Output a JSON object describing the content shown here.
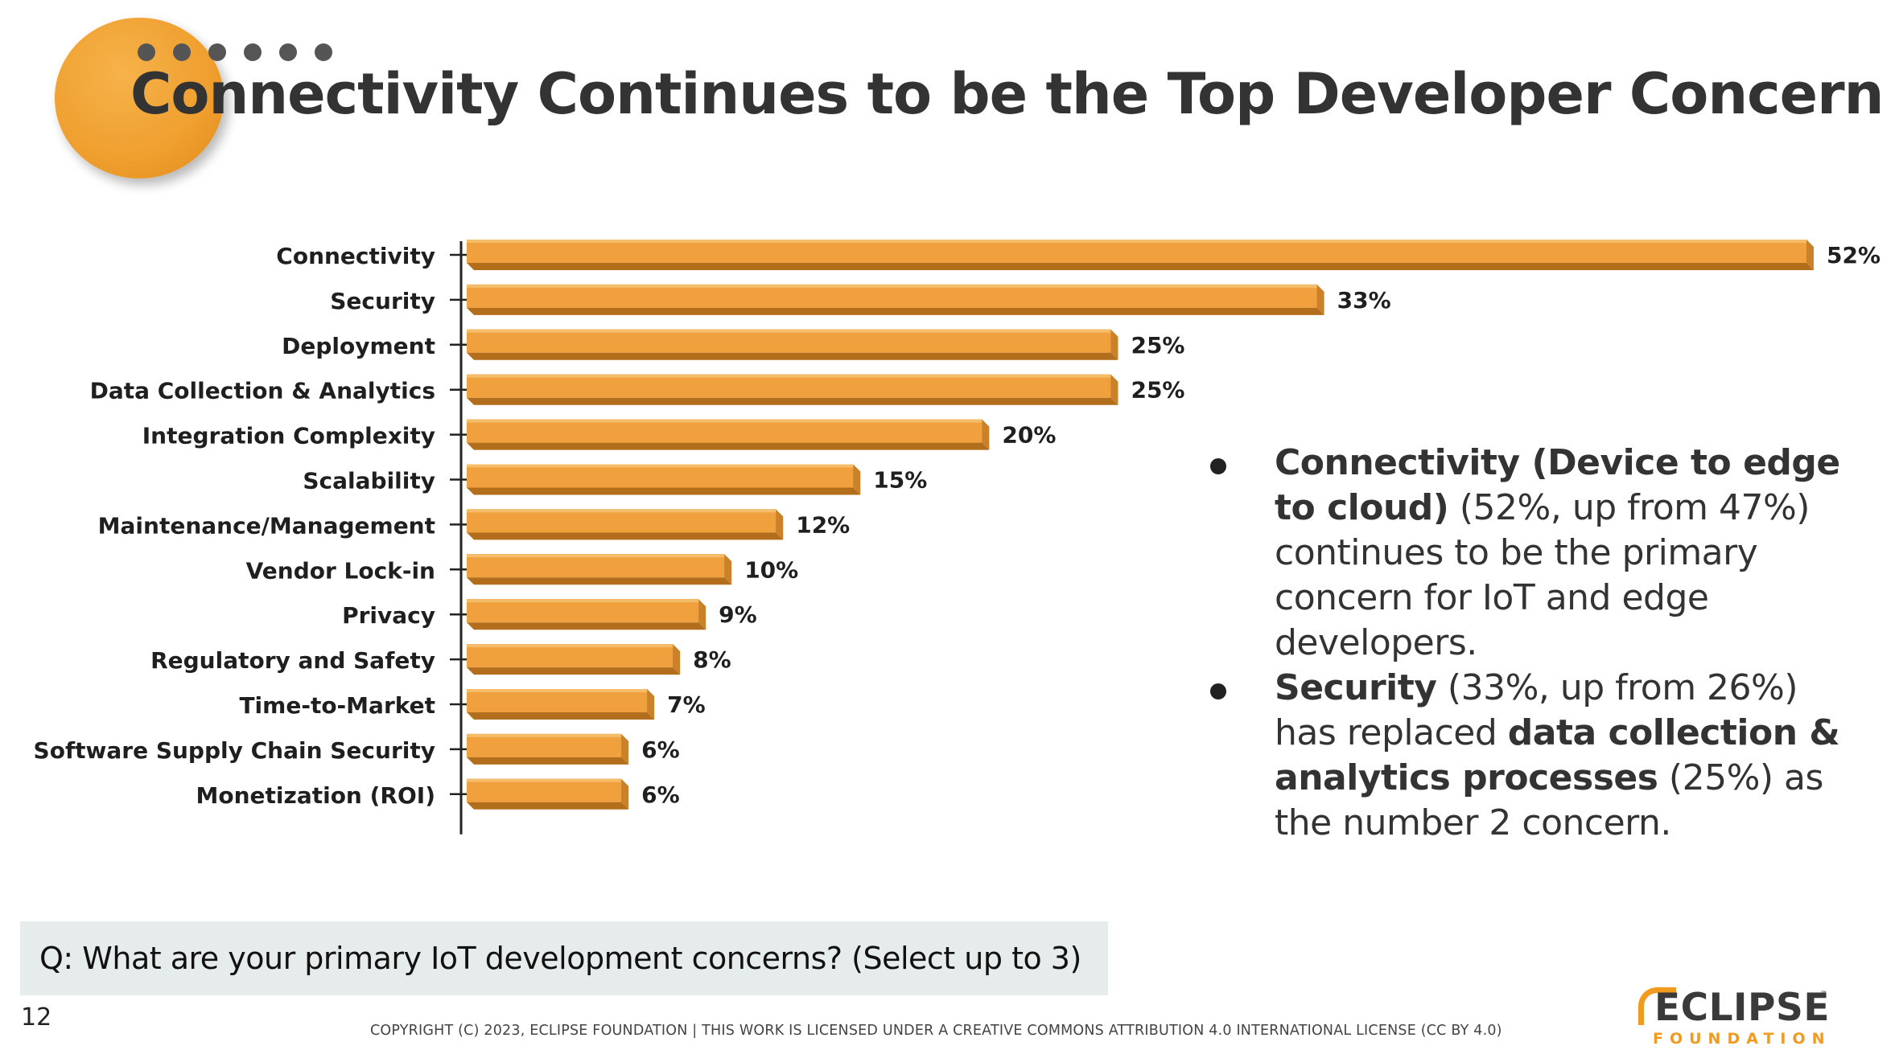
{
  "slide": {
    "title": "Connectivity Continues to be the Top Developer Concern",
    "page_number": "12",
    "copyright": "COPYRIGHT (C) 2023, ECLIPSE FOUNDATION | THIS WORK IS LICENSED UNDER A CREATIVE COMMONS ATTRIBUTION 4.0 INTERNATIONAL LICENSE (CC BY 4.0)",
    "question": "Q: What are your primary IoT development concerns? (Select up to 3)"
  },
  "logo": {
    "word": "ECLIPSE",
    "sub": "FOUNDATION",
    "tm": "™"
  },
  "bullets": [
    {
      "b1": "Connectivity (Device to edge to cloud)",
      "t1": " (52%, up from 47%) continues to be the primary concern for IoT and edge developers."
    },
    {
      "b1": "Security",
      "t1": " (33%, up from 26%) has replaced ",
      "b2": "data collection & analytics processes",
      "t2": " (25%) as the number 2 concern."
    }
  ],
  "colors": {
    "bar_front": "#f0a03c",
    "bar_top": "#f5bc6a",
    "bar_side": "#c9822a",
    "bar_bottom": "#b36e1c",
    "accent": "#ef9f2e"
  },
  "chart_data": {
    "type": "bar",
    "orientation": "horizontal",
    "categories": [
      "Connectivity",
      "Security",
      "Deployment",
      "Data Collection & Analytics",
      "Integration Complexity",
      "Scalability",
      "Maintenance/Management",
      "Vendor Lock-in",
      "Privacy",
      "Regulatory and Safety",
      "Time-to-Market",
      "Software Supply Chain Security",
      "Monetization (ROI)"
    ],
    "values": [
      52,
      33,
      25,
      25,
      20,
      15,
      12,
      10,
      9,
      8,
      7,
      6,
      6
    ],
    "value_labels": [
      "52%",
      "33%",
      "25%",
      "25%",
      "20%",
      "15%",
      "12%",
      "10%",
      "9%",
      "8%",
      "7%",
      "6%",
      "6%"
    ],
    "xlim": [
      0,
      52
    ],
    "grid": false,
    "legend": "none"
  }
}
